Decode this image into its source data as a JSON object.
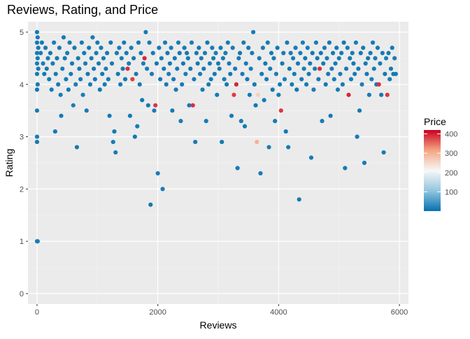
{
  "chart_data": {
    "type": "scatter",
    "title": "Reviews, Rating, and Price",
    "xlabel": "Reviews",
    "ylabel": "Rating",
    "xlim": [
      -150,
      6150
    ],
    "ylim": [
      -0.2,
      5.2
    ],
    "x_ticks": [
      0,
      2000,
      4000,
      6000
    ],
    "x_tick_labels": [
      "0",
      "2000",
      "4000",
      "6000"
    ],
    "y_ticks": [
      0,
      1,
      2,
      3,
      4,
      5
    ],
    "y_tick_labels": [
      "0",
      "1",
      "2",
      "3",
      "4",
      "5"
    ],
    "grid": true,
    "legend": {
      "title": "Price",
      "position": "right",
      "type": "colorbar",
      "range": [
        0,
        420
      ],
      "breaks": [
        100,
        200,
        300,
        400
      ],
      "break_labels": [
        "100",
        "200",
        "300",
        "400"
      ],
      "colors": [
        "#0571b0",
        "#92c5de",
        "#f7f7f7",
        "#f4a582",
        "#ca0020"
      ]
    },
    "points": [
      [
        0,
        5,
        12
      ],
      [
        10,
        4.9,
        15
      ],
      [
        0,
        4.8,
        10
      ],
      [
        20,
        4.7,
        12
      ],
      [
        0,
        4.6,
        14
      ],
      [
        10,
        4.5,
        11
      ],
      [
        0,
        4.4,
        15
      ],
      [
        20,
        4.3,
        10
      ],
      [
        0,
        4.2,
        12
      ],
      [
        10,
        4.0,
        13
      ],
      [
        0,
        3.9,
        11
      ],
      [
        0,
        3.5,
        12
      ],
      [
        0,
        3.0,
        14
      ],
      [
        0,
        2.9,
        10
      ],
      [
        0,
        1.0,
        15
      ],
      [
        10,
        1.0,
        12
      ],
      [
        60,
        4.6,
        14
      ],
      [
        80,
        4.8,
        12
      ],
      [
        100,
        4.4,
        15
      ],
      [
        120,
        4.2,
        10
      ],
      [
        140,
        4.7,
        13
      ],
      [
        160,
        4.3,
        11
      ],
      [
        180,
        4.5,
        12
      ],
      [
        200,
        4.1,
        14
      ],
      [
        220,
        4.6,
        10
      ],
      [
        240,
        3.9,
        15
      ],
      [
        260,
        4.4,
        12
      ],
      [
        280,
        4.8,
        14
      ],
      [
        300,
        3.1,
        11
      ],
      [
        310,
        4.2,
        12
      ],
      [
        330,
        4.5,
        10
      ],
      [
        350,
        4.0,
        13
      ],
      [
        370,
        4.7,
        12
      ],
      [
        390,
        3.8,
        15
      ],
      [
        400,
        3.4,
        11
      ],
      [
        420,
        4.3,
        14
      ],
      [
        440,
        4.9,
        12
      ],
      [
        460,
        4.5,
        10
      ],
      [
        480,
        4.1,
        12
      ],
      [
        500,
        4.6,
        14
      ],
      [
        520,
        3.9,
        11
      ],
      [
        540,
        4.8,
        13
      ],
      [
        560,
        4.2,
        12
      ],
      [
        580,
        4.4,
        10
      ],
      [
        600,
        3.6,
        15
      ],
      [
        620,
        4.7,
        12
      ],
      [
        640,
        4.0,
        14
      ],
      [
        660,
        2.8,
        11
      ],
      [
        680,
        4.5,
        12
      ],
      [
        700,
        4.3,
        10
      ],
      [
        720,
        4.1,
        13
      ],
      [
        740,
        4.8,
        12
      ],
      [
        760,
        3.8,
        15
      ],
      [
        780,
        4.6,
        11
      ],
      [
        800,
        4.4,
        14
      ],
      [
        820,
        3.5,
        12
      ],
      [
        840,
        4.2,
        10
      ],
      [
        860,
        4.7,
        12
      ],
      [
        880,
        4.0,
        14
      ],
      [
        900,
        4.5,
        11
      ],
      [
        920,
        4.9,
        13
      ],
      [
        940,
        4.3,
        12
      ],
      [
        960,
        4.1,
        10
      ],
      [
        980,
        4.6,
        15
      ],
      [
        1000,
        4.8,
        12
      ],
      [
        1020,
        4.4,
        14
      ],
      [
        1040,
        3.9,
        11
      ],
      [
        1060,
        4.7,
        12
      ],
      [
        1080,
        4.2,
        10
      ],
      [
        1100,
        4.5,
        13
      ],
      [
        1120,
        4.0,
        12
      ],
      [
        1140,
        4.3,
        15
      ],
      [
        1160,
        4.6,
        11
      ],
      [
        1180,
        4.1,
        14
      ],
      [
        1200,
        3.4,
        12
      ],
      [
        1220,
        4.8,
        10
      ],
      [
        1240,
        4.4,
        12
      ],
      [
        1260,
        2.9,
        14
      ],
      [
        1280,
        3.1,
        11
      ],
      [
        1300,
        2.7,
        13
      ],
      [
        1320,
        4.6,
        12
      ],
      [
        1340,
        4.2,
        10
      ],
      [
        1360,
        4.7,
        15
      ],
      [
        1380,
        4.0,
        12
      ],
      [
        1400,
        4.5,
        14
      ],
      [
        1420,
        4.3,
        11
      ],
      [
        1440,
        4.8,
        12
      ],
      [
        1460,
        4.1,
        10
      ],
      [
        1480,
        4.6,
        13
      ],
      [
        1500,
        4.3,
        390
      ],
      [
        1520,
        4.4,
        15
      ],
      [
        1540,
        3.4,
        11
      ],
      [
        1560,
        4.7,
        14
      ],
      [
        1580,
        4.1,
        380
      ],
      [
        1600,
        4.5,
        12
      ],
      [
        1620,
        3.0,
        10
      ],
      [
        1640,
        4.2,
        12
      ],
      [
        1660,
        3.2,
        14
      ],
      [
        1680,
        4.8,
        11
      ],
      [
        1700,
        4.0,
        13
      ],
      [
        1720,
        4.6,
        12
      ],
      [
        1740,
        3.7,
        10
      ],
      [
        1760,
        4.4,
        15
      ],
      [
        1780,
        4.5,
        395
      ],
      [
        1800,
        5.0,
        12
      ],
      [
        1820,
        4.3,
        14
      ],
      [
        1840,
        3.6,
        11
      ],
      [
        1860,
        4.8,
        12
      ],
      [
        1880,
        1.7,
        10
      ],
      [
        1900,
        4.2,
        13
      ],
      [
        1920,
        4.6,
        12
      ],
      [
        1940,
        3.5,
        15
      ],
      [
        1960,
        3.6,
        385
      ],
      [
        1980,
        4.4,
        11
      ],
      [
        2000,
        2.3,
        14
      ],
      [
        2020,
        4.7,
        12
      ],
      [
        2040,
        4.1,
        10
      ],
      [
        2060,
        4.5,
        12
      ],
      [
        2080,
        2.0,
        14
      ],
      [
        2100,
        4.3,
        11
      ],
      [
        2120,
        4.8,
        13
      ],
      [
        2140,
        4.0,
        12
      ],
      [
        2160,
        4.6,
        10
      ],
      [
        2180,
        4.2,
        15
      ],
      [
        2200,
        4.4,
        12
      ],
      [
        2220,
        4.7,
        14
      ],
      [
        2240,
        3.5,
        11
      ],
      [
        2260,
        4.1,
        12
      ],
      [
        2280,
        4.5,
        10
      ],
      [
        2300,
        3.9,
        13
      ],
      [
        2320,
        4.3,
        12
      ],
      [
        2340,
        4.8,
        15
      ],
      [
        2360,
        4.6,
        11
      ],
      [
        2380,
        3.3,
        14
      ],
      [
        2400,
        4.0,
        12
      ],
      [
        2420,
        4.4,
        10
      ],
      [
        2440,
        4.7,
        12
      ],
      [
        2460,
        4.2,
        14
      ],
      [
        2480,
        4.6,
        11
      ],
      [
        2500,
        4.5,
        13
      ],
      [
        2520,
        3.6,
        12
      ],
      [
        2540,
        4.3,
        10
      ],
      [
        2560,
        4.8,
        15
      ],
      [
        2580,
        3.6,
        390
      ],
      [
        2600,
        4.1,
        12
      ],
      [
        2620,
        2.9,
        14
      ],
      [
        2640,
        4.6,
        11
      ],
      [
        2660,
        4.4,
        12
      ],
      [
        2680,
        4.7,
        10
      ],
      [
        2700,
        4.2,
        13
      ],
      [
        2720,
        4.5,
        12
      ],
      [
        2740,
        3.9,
        15
      ],
      [
        2760,
        4.3,
        11
      ],
      [
        2780,
        4.6,
        14
      ],
      [
        2800,
        3.3,
        12
      ],
      [
        2820,
        4.8,
        10
      ],
      [
        2840,
        4.0,
        12
      ],
      [
        2860,
        4.4,
        14
      ],
      [
        2880,
        4.1,
        11
      ],
      [
        2900,
        4.7,
        13
      ],
      [
        2920,
        4.5,
        12
      ],
      [
        2940,
        4.2,
        10
      ],
      [
        2960,
        4.6,
        15
      ],
      [
        2980,
        3.8,
        12
      ],
      [
        3000,
        4.4,
        14
      ],
      [
        3020,
        4.3,
        11
      ],
      [
        3040,
        4.7,
        12
      ],
      [
        3060,
        2.9,
        10
      ],
      [
        3080,
        4.5,
        13
      ],
      [
        3100,
        4.1,
        12
      ],
      [
        3120,
        4.6,
        15
      ],
      [
        3140,
        4.0,
        11
      ],
      [
        3160,
        4.8,
        14
      ],
      [
        3180,
        4.4,
        12
      ],
      [
        3200,
        4.2,
        10
      ],
      [
        3220,
        3.4,
        12
      ],
      [
        3240,
        4.7,
        14
      ],
      [
        3260,
        3.8,
        380
      ],
      [
        3280,
        4.3,
        11
      ],
      [
        3300,
        4.0,
        395
      ],
      [
        3320,
        2.4,
        13
      ],
      [
        3340,
        4.5,
        12
      ],
      [
        3360,
        4.6,
        10
      ],
      [
        3380,
        3.3,
        15
      ],
      [
        3400,
        4.2,
        12
      ],
      [
        3420,
        4.8,
        14
      ],
      [
        3440,
        3.2,
        11
      ],
      [
        3460,
        4.4,
        12
      ],
      [
        3480,
        4.1,
        10
      ],
      [
        3500,
        4.7,
        13
      ],
      [
        3520,
        3.8,
        12
      ],
      [
        3540,
        4.3,
        15
      ],
      [
        3560,
        4.6,
        11
      ],
      [
        3580,
        5.0,
        14
      ],
      [
        3600,
        4.0,
        12
      ],
      [
        3620,
        3.6,
        10
      ],
      [
        3640,
        2.9,
        300
      ],
      [
        3660,
        3.8,
        260
      ],
      [
        3680,
        4.5,
        12
      ],
      [
        3700,
        2.3,
        14
      ],
      [
        3720,
        4.2,
        11
      ],
      [
        3740,
        4.7,
        13
      ],
      [
        3760,
        3.7,
        12
      ],
      [
        3780,
        4.4,
        10
      ],
      [
        3800,
        4.1,
        15
      ],
      [
        3820,
        4.8,
        12
      ],
      [
        3840,
        2.8,
        14
      ],
      [
        3860,
        4.3,
        11
      ],
      [
        3880,
        4.6,
        12
      ],
      [
        3900,
        3.9,
        10
      ],
      [
        3920,
        4.5,
        13
      ],
      [
        3940,
        3.3,
        12
      ],
      [
        3960,
        4.2,
        15
      ],
      [
        3980,
        4.7,
        11
      ],
      [
        4000,
        3.8,
        14
      ],
      [
        4020,
        4.0,
        12
      ],
      [
        4040,
        3.5,
        385
      ],
      [
        4060,
        4.4,
        10
      ],
      [
        4080,
        4.6,
        12
      ],
      [
        4100,
        4.1,
        14
      ],
      [
        4120,
        3.1,
        11
      ],
      [
        4140,
        4.8,
        13
      ],
      [
        4160,
        2.8,
        12
      ],
      [
        4180,
        4.3,
        10
      ],
      [
        4200,
        4.6,
        15
      ],
      [
        4220,
        4.0,
        12
      ],
      [
        4240,
        4.5,
        14
      ],
      [
        4260,
        4.2,
        11
      ],
      [
        4280,
        4.7,
        12
      ],
      [
        4300,
        3.9,
        10
      ],
      [
        4320,
        4.4,
        13
      ],
      [
        4340,
        1.8,
        12
      ],
      [
        4360,
        4.6,
        15
      ],
      [
        4380,
        4.1,
        11
      ],
      [
        4400,
        4.8,
        14
      ],
      [
        4420,
        4.3,
        12
      ],
      [
        4440,
        4.5,
        10
      ],
      [
        4460,
        4.0,
        12
      ],
      [
        4480,
        4.7,
        14
      ],
      [
        4500,
        4.2,
        11
      ],
      [
        4520,
        4.4,
        13
      ],
      [
        4540,
        2.6,
        12
      ],
      [
        4560,
        4.6,
        10
      ],
      [
        4580,
        3.9,
        15
      ],
      [
        4600,
        4.3,
        12
      ],
      [
        4620,
        4.8,
        14
      ],
      [
        4640,
        4.5,
        11
      ],
      [
        4660,
        4.1,
        12
      ],
      [
        4680,
        4.3,
        390
      ],
      [
        4700,
        4.6,
        10
      ],
      [
        4720,
        3.3,
        13
      ],
      [
        4740,
        4.4,
        12
      ],
      [
        4760,
        4.7,
        15
      ],
      [
        4780,
        4.0,
        11
      ],
      [
        4800,
        4.5,
        14
      ],
      [
        4820,
        4.2,
        12
      ],
      [
        4840,
        4.8,
        10
      ],
      [
        4860,
        3.4,
        12
      ],
      [
        4880,
        4.3,
        14
      ],
      [
        4900,
        4.6,
        11
      ],
      [
        4920,
        4.1,
        13
      ],
      [
        4940,
        4.4,
        12
      ],
      [
        4960,
        4.7,
        10
      ],
      [
        4980,
        3.9,
        15
      ],
      [
        5000,
        4.5,
        12
      ],
      [
        5020,
        4.2,
        14
      ],
      [
        5040,
        4.6,
        11
      ],
      [
        5060,
        4.0,
        12
      ],
      [
        5080,
        4.8,
        10
      ],
      [
        5100,
        2.4,
        13
      ],
      [
        5120,
        4.3,
        12
      ],
      [
        5140,
        4.7,
        15
      ],
      [
        5160,
        3.8,
        395
      ],
      [
        5180,
        4.5,
        11
      ],
      [
        5200,
        4.1,
        14
      ],
      [
        5220,
        4.6,
        12
      ],
      [
        5240,
        4.4,
        10
      ],
      [
        5260,
        4.2,
        12
      ],
      [
        5280,
        4.8,
        14
      ],
      [
        5300,
        3.0,
        11
      ],
      [
        5320,
        4.3,
        13
      ],
      [
        5340,
        3.5,
        12
      ],
      [
        5360,
        4.6,
        10
      ],
      [
        5380,
        4.0,
        15
      ],
      [
        5400,
        4.7,
        12
      ],
      [
        5420,
        2.5,
        14
      ],
      [
        5440,
        4.4,
        11
      ],
      [
        5460,
        4.2,
        12
      ],
      [
        5480,
        4.5,
        10
      ],
      [
        5500,
        3.8,
        13
      ],
      [
        5520,
        4.6,
        12
      ],
      [
        5540,
        4.1,
        15
      ],
      [
        5560,
        4.8,
        11
      ],
      [
        5580,
        4.3,
        14
      ],
      [
        5600,
        4.5,
        12
      ],
      [
        5620,
        4.0,
        10
      ],
      [
        5640,
        4.7,
        12
      ],
      [
        5660,
        4.0,
        390
      ],
      [
        5680,
        4.4,
        14
      ],
      [
        5700,
        3.8,
        11
      ],
      [
        5720,
        4.6,
        13
      ],
      [
        5740,
        2.7,
        12
      ],
      [
        5760,
        4.2,
        10
      ],
      [
        5780,
        4.5,
        15
      ],
      [
        5800,
        3.8,
        385
      ],
      [
        5820,
        4.6,
        12
      ],
      [
        5840,
        4.1,
        14
      ],
      [
        5860,
        4.3,
        11
      ],
      [
        5880,
        4.7,
        12
      ],
      [
        5900,
        4.2,
        10
      ],
      [
        5920,
        4.5,
        13
      ],
      [
        5940,
        4.2,
        12
      ]
    ]
  }
}
